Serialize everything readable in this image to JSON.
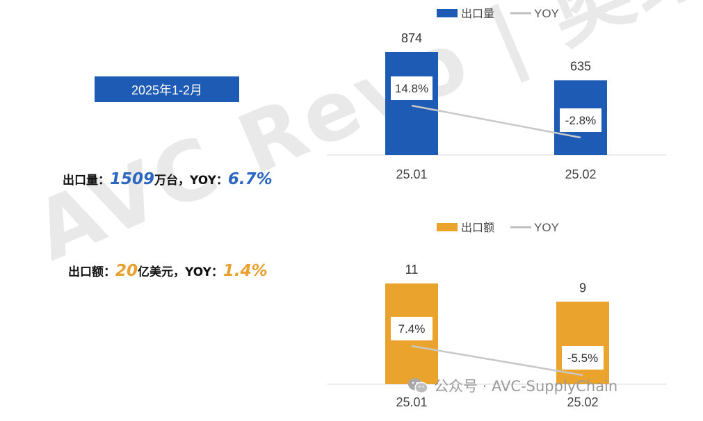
{
  "watermark": "AVC Revo | 奥维睿沃",
  "period": "2025年1-2月",
  "summary": {
    "volume": {
      "label": "出口量：",
      "value": "1509",
      "unit": "万台，",
      "yoy_label": "YOY：",
      "yoy": "6.7%"
    },
    "amount": {
      "label": "出口额：",
      "value": "20",
      "unit": "亿美元，",
      "yoy_label": "YOY：",
      "yoy": "1.4%"
    }
  },
  "footer": {
    "text": "公众号 · AVC-SupplyChain",
    "icon": "wechat-icon"
  },
  "colors": {
    "blue": "#1e5bb5",
    "orange": "#eaa42e",
    "line": "#c8c8c8"
  },
  "chart_data": [
    {
      "type": "bar",
      "categories": [
        "25.01",
        "25.02"
      ],
      "series": [
        {
          "name": "出口量",
          "values": [
            874,
            635
          ]
        },
        {
          "name": "YOY",
          "type": "line",
          "values": [
            "14.8%",
            "-2.8%"
          ]
        }
      ],
      "legend": "top",
      "grid": false
    },
    {
      "type": "bar",
      "categories": [
        "25.01",
        "25.02"
      ],
      "series": [
        {
          "name": "出口额",
          "values": [
            11,
            9
          ]
        },
        {
          "name": "YOY",
          "type": "line",
          "values": [
            "7.4%",
            "-5.5%"
          ]
        }
      ],
      "legend": "top",
      "grid": false
    }
  ]
}
